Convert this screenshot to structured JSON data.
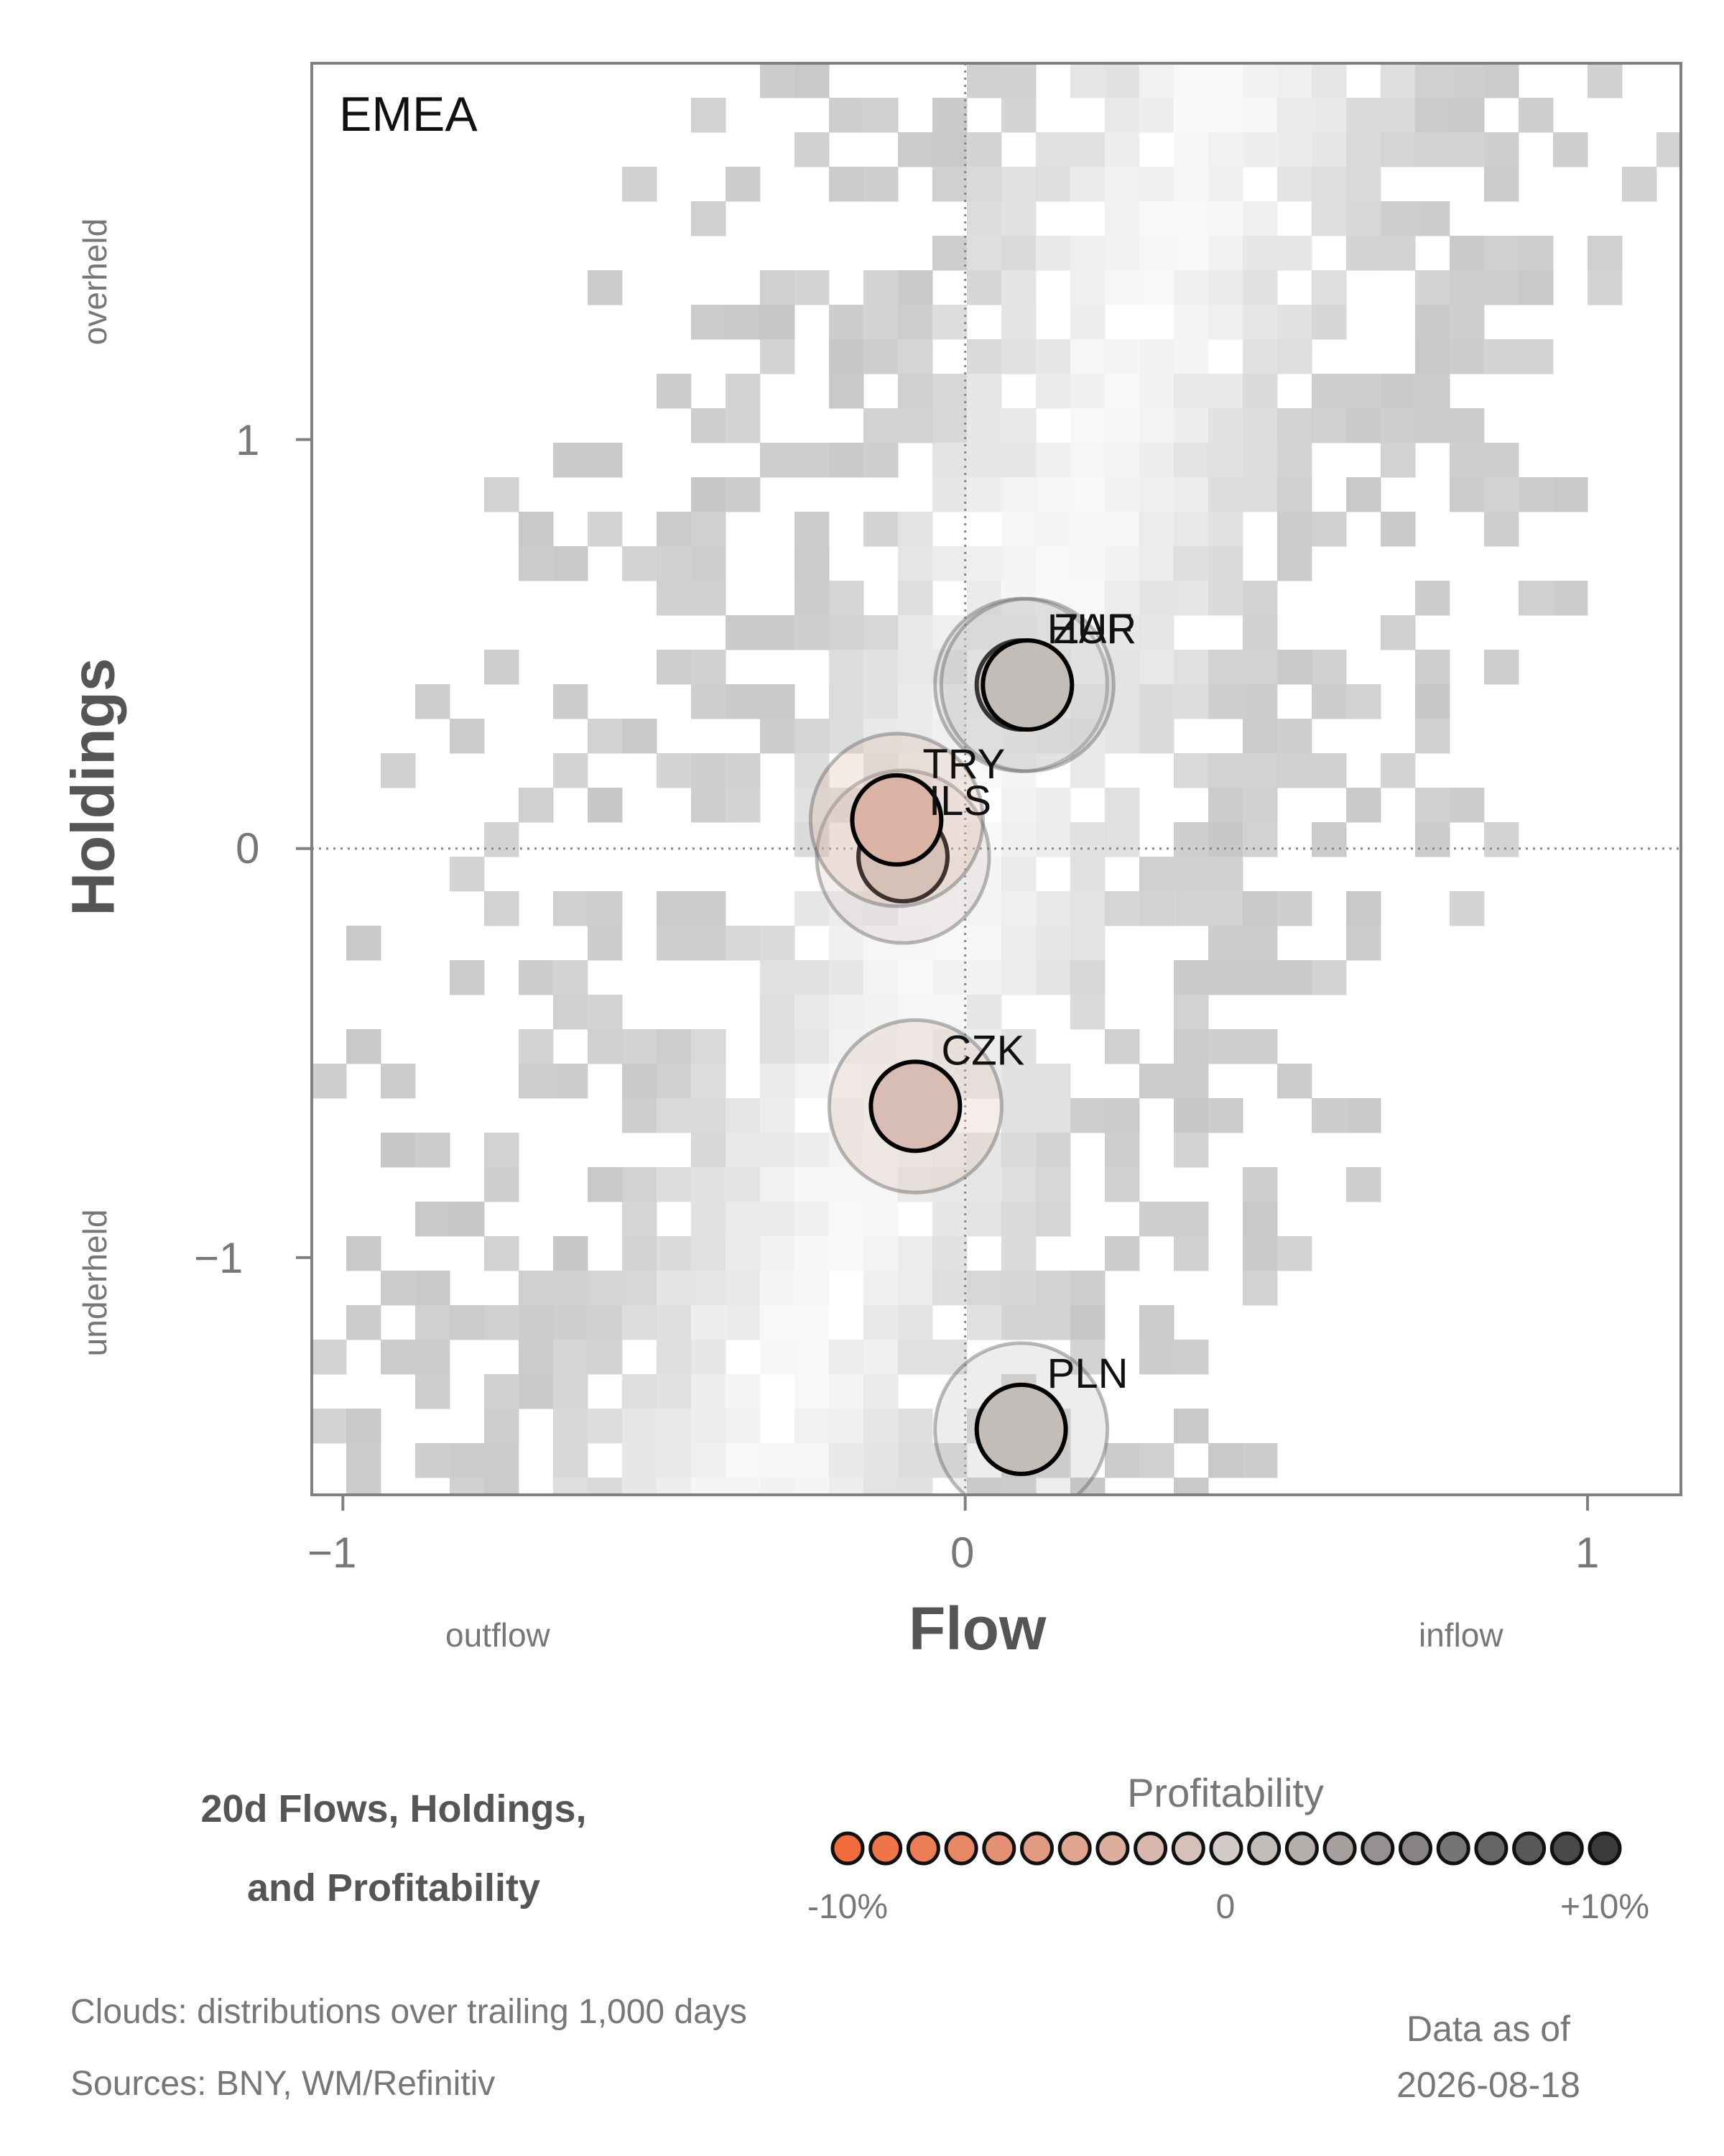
{
  "chart_data": {
    "type": "scatter",
    "panel_label": "EMEA",
    "title": "20d Flows, Holdings, and Profitability",
    "title_lines": [
      "20d Flows, Holdings,",
      "and Profitability"
    ],
    "xlabel": "Flow",
    "ylabel": "Holdings",
    "x_low_label": "outflow",
    "x_high_label": "inflow",
    "y_high_label": "overheld",
    "y_low_label": "underheld",
    "xlim": [
      -1.05,
      1.15
    ],
    "ylim": [
      -1.58,
      1.92
    ],
    "x_ticks": [
      {
        "value": -1,
        "label": "−1"
      },
      {
        "value": 0,
        "label": "0"
      },
      {
        "value": 1,
        "label": "1"
      }
    ],
    "y_ticks": [
      {
        "value": 1,
        "label": "1"
      },
      {
        "value": 0,
        "label": "0"
      },
      {
        "value": -1,
        "label": "−1"
      }
    ],
    "reference_lines": {
      "x": 0,
      "y": 0
    },
    "points": [
      {
        "label": "HUF",
        "x": 0.09,
        "y": 0.4,
        "profitability": 0.5
      },
      {
        "label": "ZAR",
        "x": 0.1,
        "y": 0.4,
        "profitability": 1.0
      },
      {
        "label": "ILS",
        "x": -0.1,
        "y": -0.02,
        "profitability": -0.5
      },
      {
        "label": "TRY",
        "x": -0.11,
        "y": 0.07,
        "profitability": -2.5
      },
      {
        "label": "CZK",
        "x": -0.08,
        "y": -0.63,
        "profitability": -1.5
      },
      {
        "label": "PLN",
        "x": 0.09,
        "y": -1.42,
        "profitability": 1.0
      }
    ],
    "legend": {
      "title": "Profitability",
      "min_label": "-10%",
      "mid_label": "0",
      "max_label": "+10%",
      "min_value": -10,
      "max_value": 10,
      "steps": 21,
      "low_color": "#f26b3a",
      "mid_color": "#d2cbc8",
      "high_color": "#3b3b3b"
    },
    "cloud_color": "#c8c8c8"
  },
  "notes": {
    "clouds": "Clouds:  distributions over trailing 1,000 days",
    "sources": "Sources:  BNY, WM/Refinitiv"
  },
  "as_of": {
    "label": "Data as of",
    "date": "2026-08-18"
  }
}
